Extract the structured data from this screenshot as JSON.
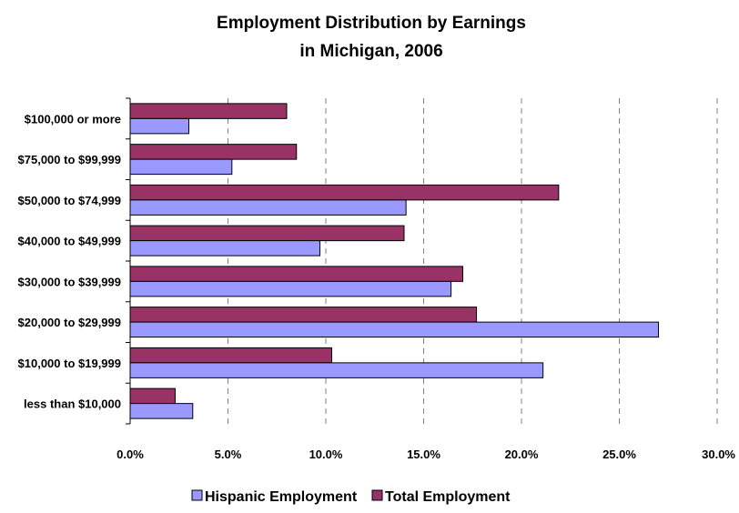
{
  "chart_data": {
    "type": "bar",
    "orientation": "horizontal",
    "title": "Employment Distribution by Earnings",
    "subtitle": "in Michigan, 2006",
    "categories": [
      "$100,000 or more",
      "$75,000 to $99,999",
      "$50,000 to $74,999",
      "$40,000 to $49,999",
      "$30,000 to $39,999",
      "$20,000 to $29,999",
      "$10,000 to $19,999",
      "less than $10,000"
    ],
    "series": [
      {
        "name": "Hispanic Employment",
        "color": "#9999FF",
        "values": [
          3.0,
          5.2,
          14.1,
          9.7,
          16.4,
          27.0,
          21.1,
          3.2
        ]
      },
      {
        "name": "Total Employment",
        "color": "#993366",
        "values": [
          8.0,
          8.5,
          21.9,
          14.0,
          17.0,
          17.7,
          10.3,
          2.3
        ]
      }
    ],
    "xlim": [
      0,
      30
    ],
    "xticks": [
      "0.0%",
      "5.0%",
      "10.0%",
      "15.0%",
      "20.0%",
      "25.0%",
      "30.0%"
    ],
    "grid": "vertical dashed",
    "legend_position": "bottom",
    "xlabel": "",
    "ylabel": ""
  }
}
